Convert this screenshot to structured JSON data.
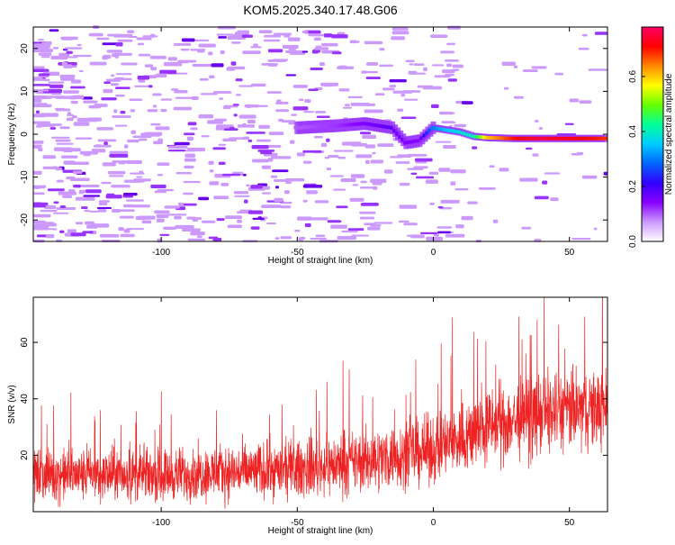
{
  "page": {
    "title": "KOM5.2025.340.17.48.G06"
  },
  "chart_data": [
    {
      "type": "heatmap",
      "title": "KOM5.2025.340.17.48.G06",
      "xlabel": "Height of straight line (km)",
      "ylabel": "Frequency (Hz)",
      "xlim": [
        -147,
        64
      ],
      "ylim": [
        -25,
        25
      ],
      "xticks": [
        -100,
        -50,
        0,
        50
      ],
      "yticks": [
        20,
        10,
        0,
        -10,
        -20
      ],
      "colorbar": {
        "label": "Normalized spectral amplitude",
        "range": [
          0,
          0.78
        ],
        "ticks": [
          0.0,
          0.2,
          0.4,
          0.6
        ],
        "colormap": [
          "#ffffff",
          "#cc99ff",
          "#8800ff",
          "#3300ff",
          "#0066ff",
          "#00ccff",
          "#00ff99",
          "#66ff00",
          "#ffff00",
          "#ff8800",
          "#ff0000",
          "#ff0066"
        ]
      },
      "ridge": [
        {
          "x": -50,
          "f": 1.5,
          "amp": 0.1
        },
        {
          "x": -35,
          "f": 2.0,
          "amp": 0.12
        },
        {
          "x": -25,
          "f": 2.5,
          "amp": 0.15
        },
        {
          "x": -15,
          "f": 1.5,
          "amp": 0.18
        },
        {
          "x": -10,
          "f": -2.0,
          "amp": 0.15
        },
        {
          "x": -5,
          "f": -1.5,
          "amp": 0.14
        },
        {
          "x": 0,
          "f": 1.5,
          "amp": 0.3
        },
        {
          "x": 5,
          "f": 1.0,
          "amp": 0.35
        },
        {
          "x": 10,
          "f": 0.5,
          "amp": 0.38
        },
        {
          "x": 15,
          "f": -0.5,
          "amp": 0.4
        },
        {
          "x": 20,
          "f": -0.8,
          "amp": 0.6
        },
        {
          "x": 30,
          "f": -1.0,
          "amp": 0.7
        },
        {
          "x": 40,
          "f": -1.0,
          "amp": 0.75
        },
        {
          "x": 50,
          "f": -1.0,
          "amp": 0.72
        },
        {
          "x": 60,
          "f": -1.0,
          "amp": 0.7
        },
        {
          "x": 64,
          "f": -1.0,
          "amp": 0.68
        }
      ]
    },
    {
      "type": "line",
      "xlabel": "Height of straight line (km)",
      "ylabel": "SNR (v/v)",
      "xlim": [
        -147,
        64
      ],
      "ylim": [
        0,
        76
      ],
      "xticks": [
        -100,
        -50,
        0,
        50
      ],
      "yticks": [
        20,
        40,
        60
      ],
      "color": "#ee2222",
      "trend": [
        {
          "x": -147,
          "mean": 13,
          "spread": 10
        },
        {
          "x": -100,
          "mean": 13,
          "spread": 10
        },
        {
          "x": -50,
          "mean": 15,
          "spread": 11
        },
        {
          "x": -25,
          "mean": 18,
          "spread": 12
        },
        {
          "x": 0,
          "mean": 22,
          "spread": 13
        },
        {
          "x": 20,
          "mean": 30,
          "spread": 15
        },
        {
          "x": 40,
          "mean": 35,
          "spread": 16
        },
        {
          "x": 64,
          "mean": 37,
          "spread": 15
        }
      ]
    }
  ]
}
